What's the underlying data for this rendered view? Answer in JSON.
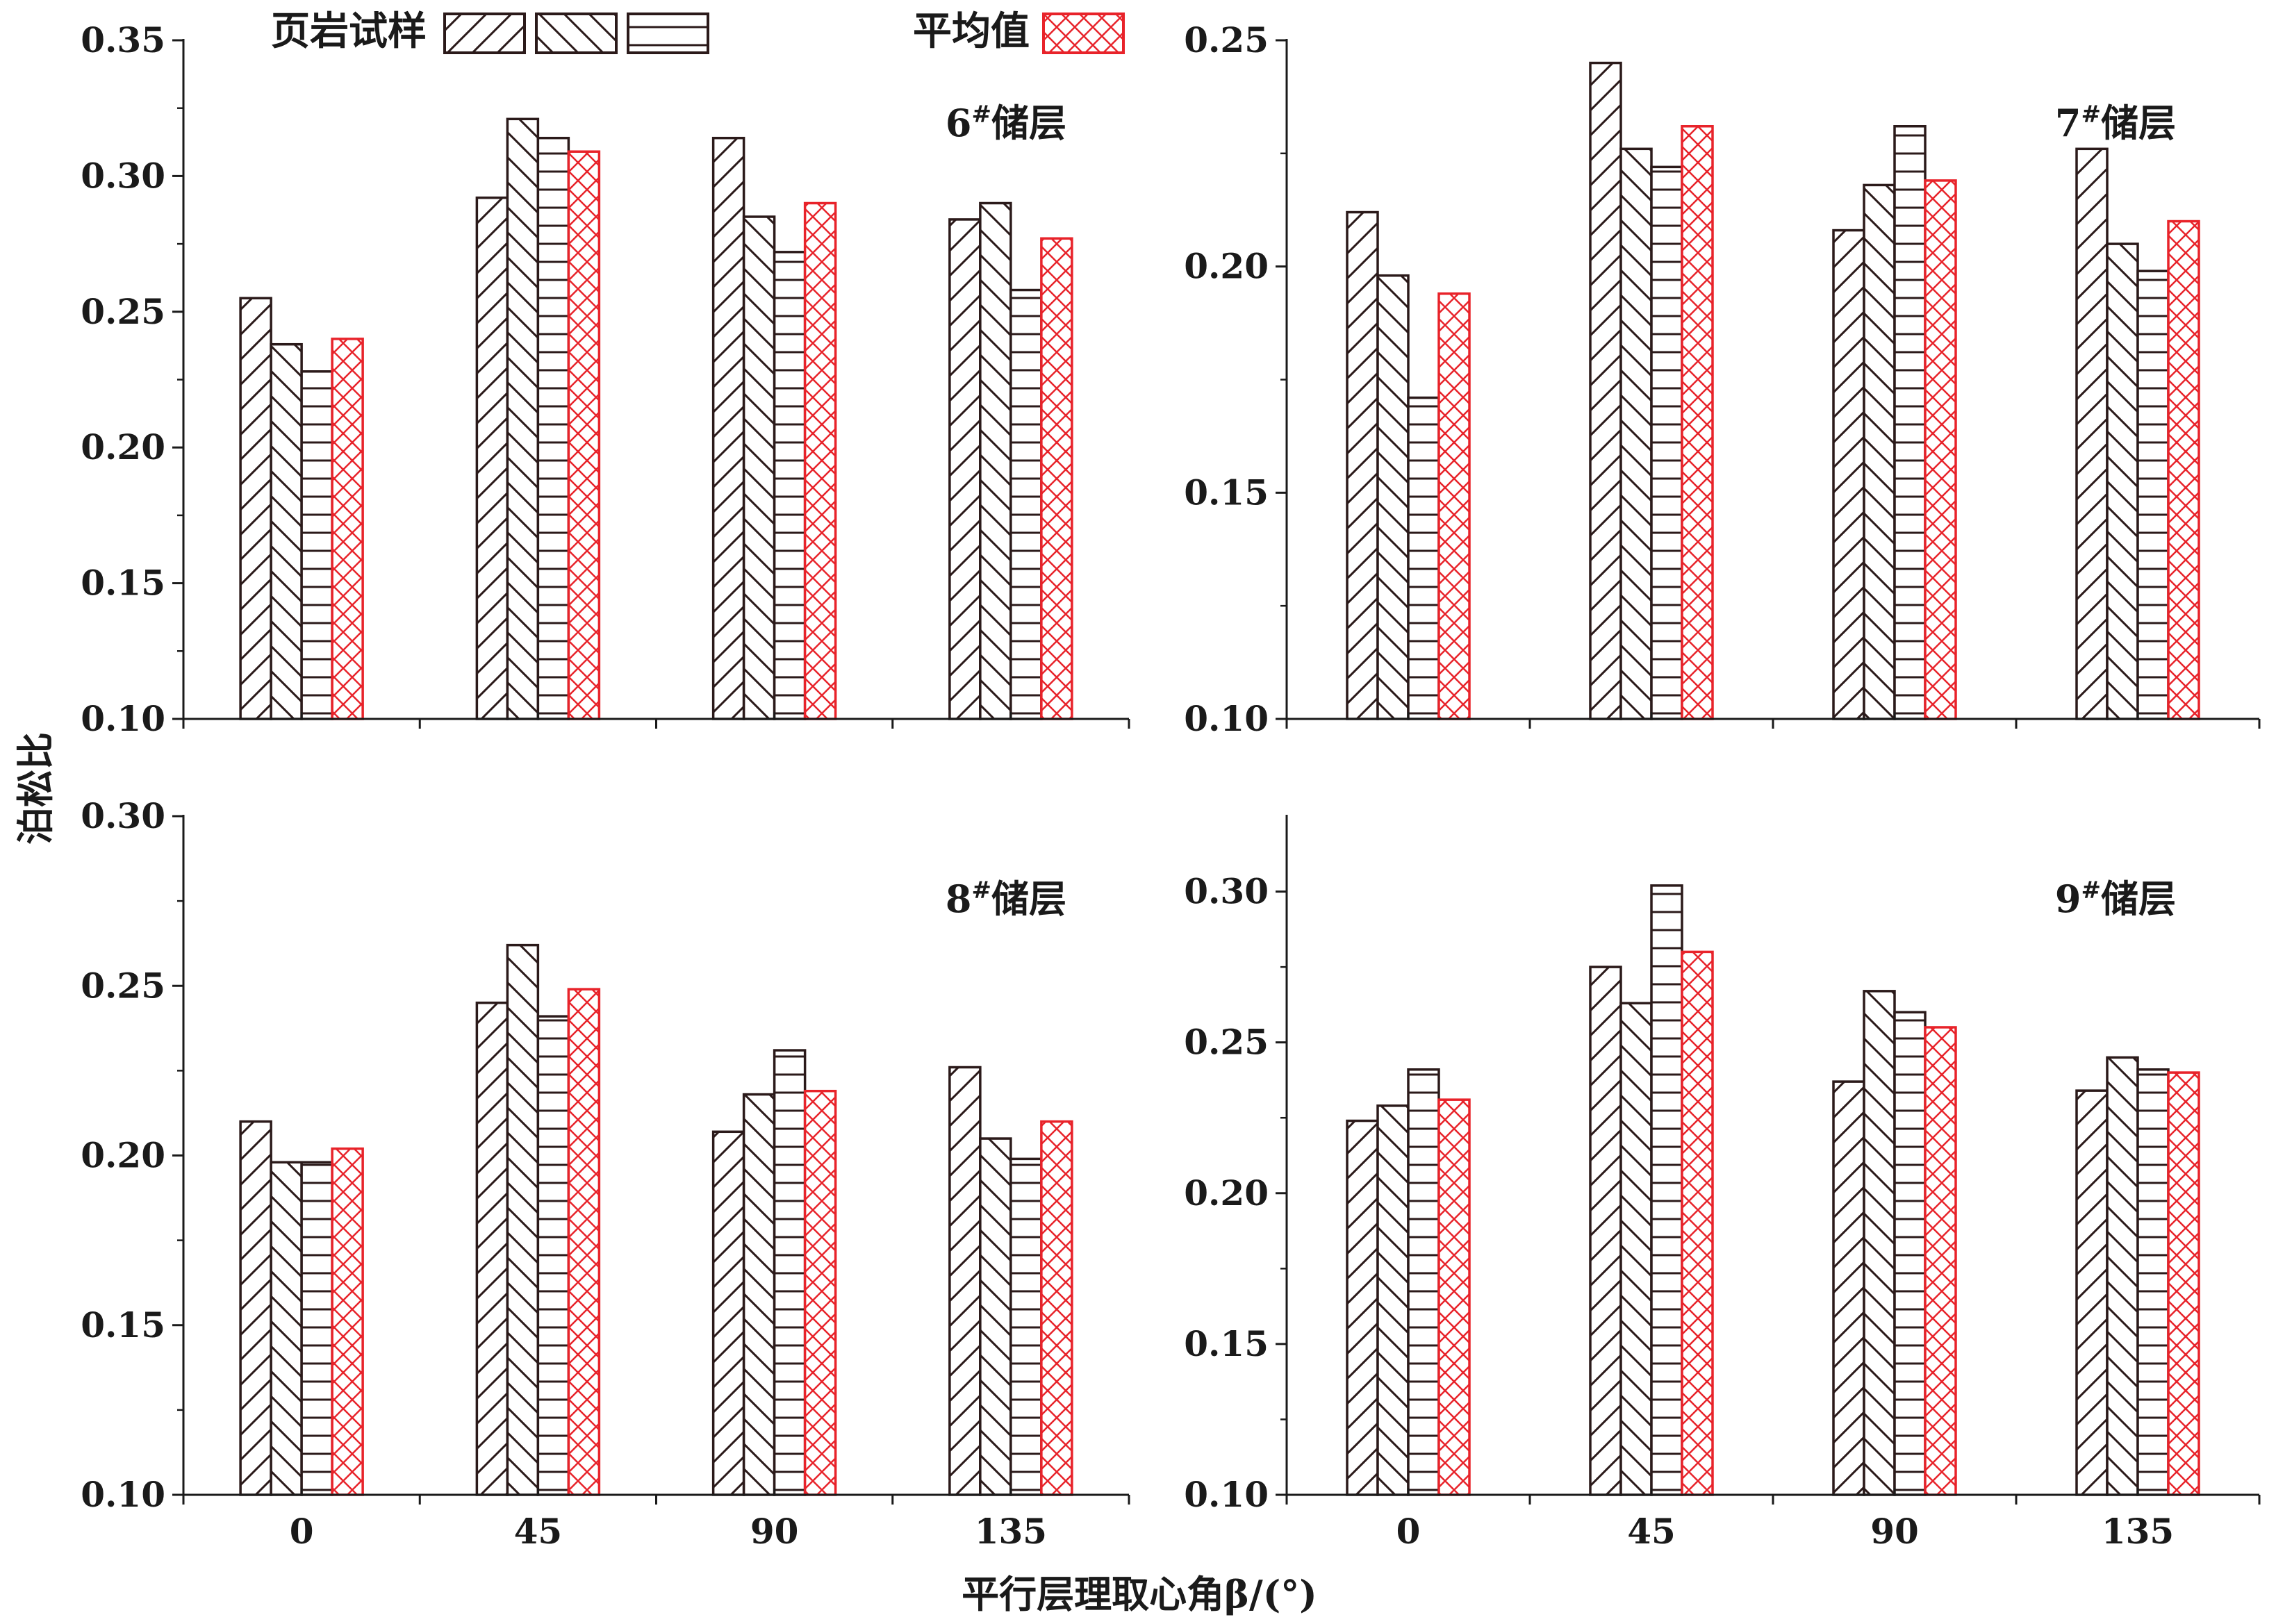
{
  "legend": {
    "samples_label": "页岩试样",
    "average_label": "平均值"
  },
  "axes": {
    "ylabel": "泊松比",
    "xlabel": "平行层理取心角β/(°)"
  },
  "colors": {
    "sample_stroke": "#2b1a1a",
    "average_stroke": "#e8232a",
    "axis": "#1a1a1a"
  },
  "patterns": [
    "forward-diagonal-hatch",
    "backward-diagonal-hatch",
    "horizontal-lines",
    "crosshatch-red"
  ],
  "chart_data": [
    {
      "type": "bar",
      "panel_label": "6#储层",
      "categories": [
        "0",
        "45",
        "90",
        "135"
      ],
      "ylim": [
        0.1,
        0.35
      ],
      "yticks": [
        "0.10",
        "0.15",
        "0.20",
        "0.25",
        "0.30",
        "0.35"
      ],
      "series": [
        {
          "values": [
            0.255,
            0.292,
            0.314,
            0.284
          ]
        },
        {
          "values": [
            0.238,
            0.321,
            0.285,
            0.29
          ]
        },
        {
          "values": [
            0.228,
            0.314,
            0.272,
            0.258
          ]
        },
        {
          "name": "平均值",
          "values": [
            0.24,
            0.309,
            0.29,
            0.277
          ]
        }
      ]
    },
    {
      "type": "bar",
      "panel_label": "7#储层",
      "categories": [
        "0",
        "45",
        "90",
        "135"
      ],
      "ylim": [
        0.1,
        0.25
      ],
      "yticks": [
        "0.10",
        "0.15",
        "0.20",
        "0.25"
      ],
      "series": [
        {
          "values": [
            0.212,
            0.245,
            0.208,
            0.226
          ]
        },
        {
          "values": [
            0.198,
            0.226,
            0.218,
            0.205
          ]
        },
        {
          "values": [
            0.171,
            0.222,
            0.231,
            0.199
          ]
        },
        {
          "name": "平均值",
          "values": [
            0.194,
            0.231,
            0.219,
            0.21
          ]
        }
      ]
    },
    {
      "type": "bar",
      "panel_label": "8#储层",
      "categories": [
        "0",
        "45",
        "90",
        "135"
      ],
      "ylim": [
        0.1,
        0.3
      ],
      "yticks": [
        "0.10",
        "0.15",
        "0.20",
        "0.25",
        "0.30"
      ],
      "series": [
        {
          "values": [
            0.21,
            0.245,
            0.207,
            0.226
          ]
        },
        {
          "values": [
            0.198,
            0.262,
            0.218,
            0.205
          ]
        },
        {
          "values": [
            0.198,
            0.241,
            0.231,
            0.199
          ]
        },
        {
          "name": "平均值",
          "values": [
            0.202,
            0.249,
            0.219,
            0.21
          ]
        }
      ]
    },
    {
      "type": "bar",
      "panel_label": "9#储层",
      "categories": [
        "0",
        "45",
        "90",
        "135"
      ],
      "ylim": [
        0.1,
        0.325
      ],
      "yticks": [
        "0.10",
        "0.15",
        "0.20",
        "0.25",
        "0.30"
      ],
      "series": [
        {
          "values": [
            0.224,
            0.275,
            0.237,
            0.234
          ]
        },
        {
          "values": [
            0.229,
            0.263,
            0.267,
            0.245
          ]
        },
        {
          "values": [
            0.241,
            0.302,
            0.26,
            0.241
          ]
        },
        {
          "name": "平均值",
          "values": [
            0.231,
            0.28,
            0.255,
            0.24
          ]
        }
      ]
    }
  ]
}
